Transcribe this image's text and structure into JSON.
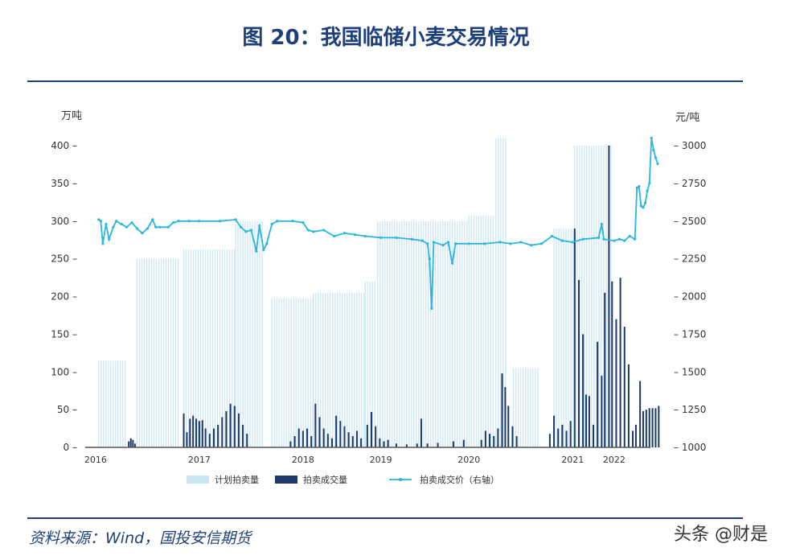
{
  "title": "图 20：我国临储小麦交易情况",
  "source": "资料来源：Wind，国投安信期货",
  "watermark": "头条 @财是",
  "chart_data": {
    "type": "bar+line",
    "left_axis": {
      "unit_label": "万吨",
      "ticks": [
        0,
        50,
        100,
        150,
        200,
        250,
        300,
        350,
        400
      ],
      "ylim": [
        0,
        400
      ]
    },
    "right_axis": {
      "unit_label": "元/吨",
      "ticks": [
        1000,
        1250,
        1500,
        1750,
        2000,
        2250,
        2500,
        2750,
        3000
      ],
      "ylim": [
        1000,
        3000
      ]
    },
    "x_axis": {
      "ticks": [
        "2016",
        "2017",
        "2018",
        "2019",
        "2020",
        "2021",
        "2022"
      ],
      "tick_positions": [
        2016.0,
        2017.0,
        2018.0,
        2018.75,
        2019.6,
        2020.6,
        2021.0
      ],
      "xlim": [
        2015.9,
        2021.35
      ]
    },
    "legend": [
      "计划拍卖量",
      "拍卖成交量",
      "拍卖成交价（右轴）"
    ],
    "legend_placement": "bottom",
    "colors": {
      "planned": "#c9e4f2",
      "traded": "#1b3a6b",
      "price": "#29b6e0",
      "axis": "#333333"
    },
    "planned_segments": [
      {
        "from": 2016.03,
        "to": 2016.3,
        "value": 115
      },
      {
        "from": 2016.4,
        "to": 2016.8,
        "value": 250
      },
      {
        "from": 2016.85,
        "to": 2017.35,
        "value": 262
      },
      {
        "from": 2017.35,
        "to": 2017.62,
        "value": 300
      },
      {
        "from": 2017.7,
        "to": 2018.1,
        "value": 198
      },
      {
        "from": 2018.1,
        "to": 2018.6,
        "value": 205
      },
      {
        "from": 2018.6,
        "to": 2018.7,
        "value": 220
      },
      {
        "from": 2018.72,
        "to": 2019.6,
        "value": 300
      },
      {
        "from": 2019.6,
        "to": 2019.85,
        "value": 307
      },
      {
        "from": 2019.86,
        "to": 2019.97,
        "value": 410
      },
      {
        "from": 2020.03,
        "to": 2020.27,
        "value": 105
      },
      {
        "from": 2020.42,
        "to": 2020.62,
        "value": 290
      },
      {
        "from": 2020.62,
        "to": 2020.98,
        "value": 400
      }
    ],
    "traded_points": [
      [
        2016.32,
        8
      ],
      [
        2016.34,
        12
      ],
      [
        2016.36,
        10
      ],
      [
        2016.38,
        5
      ],
      [
        2016.85,
        45
      ],
      [
        2016.88,
        20
      ],
      [
        2016.91,
        38
      ],
      [
        2016.94,
        42
      ],
      [
        2016.97,
        38
      ],
      [
        2017.0,
        35
      ],
      [
        2017.03,
        36
      ],
      [
        2017.06,
        25
      ],
      [
        2017.1,
        18
      ],
      [
        2017.14,
        25
      ],
      [
        2017.18,
        30
      ],
      [
        2017.22,
        40
      ],
      [
        2017.26,
        48
      ],
      [
        2017.3,
        58
      ],
      [
        2017.34,
        55
      ],
      [
        2017.38,
        45
      ],
      [
        2017.42,
        30
      ],
      [
        2017.46,
        18
      ],
      [
        2017.88,
        8
      ],
      [
        2017.92,
        15
      ],
      [
        2017.96,
        25
      ],
      [
        2018.0,
        22
      ],
      [
        2018.04,
        25
      ],
      [
        2018.08,
        15
      ],
      [
        2018.12,
        58
      ],
      [
        2018.16,
        40
      ],
      [
        2018.2,
        25
      ],
      [
        2018.24,
        18
      ],
      [
        2018.28,
        12
      ],
      [
        2018.32,
        42
      ],
      [
        2018.36,
        35
      ],
      [
        2018.4,
        28
      ],
      [
        2018.44,
        20
      ],
      [
        2018.48,
        15
      ],
      [
        2018.52,
        22
      ],
      [
        2018.56,
        12
      ],
      [
        2018.62,
        30
      ],
      [
        2018.66,
        47
      ],
      [
        2018.7,
        28
      ],
      [
        2018.74,
        12
      ],
      [
        2018.78,
        8
      ],
      [
        2018.82,
        10
      ],
      [
        2018.9,
        5
      ],
      [
        2019.0,
        4
      ],
      [
        2019.1,
        5
      ],
      [
        2019.14,
        38
      ],
      [
        2019.2,
        5
      ],
      [
        2019.3,
        6
      ],
      [
        2019.45,
        8
      ],
      [
        2019.55,
        10
      ],
      [
        2019.72,
        10
      ],
      [
        2019.76,
        22
      ],
      [
        2019.8,
        18
      ],
      [
        2019.84,
        15
      ],
      [
        2019.88,
        25
      ],
      [
        2019.92,
        98
      ],
      [
        2019.95,
        80
      ],
      [
        2019.98,
        55
      ],
      [
        2020.02,
        28
      ],
      [
        2020.06,
        15
      ],
      [
        2020.38,
        18
      ],
      [
        2020.42,
        42
      ],
      [
        2020.46,
        25
      ],
      [
        2020.5,
        30
      ],
      [
        2020.54,
        22
      ],
      [
        2020.58,
        35
      ],
      [
        2020.62,
        290
      ],
      [
        2020.66,
        222
      ],
      [
        2020.7,
        150
      ],
      [
        2020.73,
        70
      ],
      [
        2020.76,
        68
      ],
      [
        2020.8,
        30
      ],
      [
        2020.84,
        140
      ],
      [
        2020.88,
        95
      ],
      [
        2020.91,
        205
      ],
      [
        2020.95,
        400
      ],
      [
        2020.98,
        220
      ],
      [
        2021.02,
        170
      ],
      [
        2021.06,
        225
      ],
      [
        2021.1,
        160
      ],
      [
        2021.14,
        110
      ],
      [
        2021.18,
        22
      ],
      [
        2021.21,
        30
      ],
      [
        2021.25,
        88
      ],
      [
        2021.28,
        48
      ],
      [
        2021.31,
        50
      ],
      [
        2021.34,
        52
      ],
      [
        2021.37,
        52
      ],
      [
        2021.4,
        52
      ],
      [
        2021.43,
        55
      ]
    ],
    "price_points": [
      [
        2016.03,
        2510
      ],
      [
        2016.05,
        2500
      ],
      [
        2016.07,
        2350
      ],
      [
        2016.1,
        2480
      ],
      [
        2016.13,
        2380
      ],
      [
        2016.17,
        2460
      ],
      [
        2016.2,
        2500
      ],
      [
        2016.25,
        2480
      ],
      [
        2016.3,
        2460
      ],
      [
        2016.35,
        2490
      ],
      [
        2016.4,
        2450
      ],
      [
        2016.45,
        2420
      ],
      [
        2016.5,
        2450
      ],
      [
        2016.55,
        2510
      ],
      [
        2016.58,
        2460
      ],
      [
        2016.62,
        2460
      ],
      [
        2016.7,
        2460
      ],
      [
        2016.75,
        2490
      ],
      [
        2016.8,
        2500
      ],
      [
        2016.9,
        2500
      ],
      [
        2017.0,
        2500
      ],
      [
        2017.2,
        2500
      ],
      [
        2017.35,
        2510
      ],
      [
        2017.4,
        2460
      ],
      [
        2017.45,
        2430
      ],
      [
        2017.5,
        2440
      ],
      [
        2017.55,
        2300
      ],
      [
        2017.58,
        2470
      ],
      [
        2017.62,
        2310
      ],
      [
        2017.65,
        2350
      ],
      [
        2017.7,
        2480
      ],
      [
        2017.75,
        2500
      ],
      [
        2017.9,
        2500
      ],
      [
        2018.0,
        2490
      ],
      [
        2018.05,
        2440
      ],
      [
        2018.1,
        2430
      ],
      [
        2018.2,
        2440
      ],
      [
        2018.3,
        2400
      ],
      [
        2018.4,
        2420
      ],
      [
        2018.5,
        2410
      ],
      [
        2018.6,
        2400
      ],
      [
        2018.75,
        2390
      ],
      [
        2018.9,
        2390
      ],
      [
        2019.05,
        2380
      ],
      [
        2019.15,
        2370
      ],
      [
        2019.2,
        2350
      ],
      [
        2019.22,
        2250
      ],
      [
        2019.24,
        1920
      ],
      [
        2019.26,
        2360
      ],
      [
        2019.35,
        2340
      ],
      [
        2019.4,
        2360
      ],
      [
        2019.44,
        2220
      ],
      [
        2019.47,
        2350
      ],
      [
        2019.6,
        2350
      ],
      [
        2019.75,
        2350
      ],
      [
        2019.9,
        2360
      ],
      [
        2020.0,
        2350
      ],
      [
        2020.1,
        2360
      ],
      [
        2020.2,
        2340
      ],
      [
        2020.3,
        2350
      ],
      [
        2020.4,
        2400
      ],
      [
        2020.5,
        2370
      ],
      [
        2020.6,
        2360
      ],
      [
        2020.7,
        2380
      ],
      [
        2020.85,
        2390
      ],
      [
        2020.88,
        2480
      ],
      [
        2020.9,
        2380
      ],
      [
        2021.0,
        2370
      ],
      [
        2021.05,
        2380
      ],
      [
        2021.1,
        2370
      ],
      [
        2021.15,
        2400
      ],
      [
        2021.2,
        2380
      ],
      [
        2021.22,
        2720
      ],
      [
        2021.24,
        2730
      ],
      [
        2021.26,
        2600
      ],
      [
        2021.28,
        2590
      ],
      [
        2021.3,
        2620
      ],
      [
        2021.32,
        2700
      ],
      [
        2021.34,
        2750
      ],
      [
        2021.36,
        3050
      ],
      [
        2021.38,
        2970
      ],
      [
        2021.4,
        2920
      ],
      [
        2021.42,
        2880
      ]
    ]
  }
}
